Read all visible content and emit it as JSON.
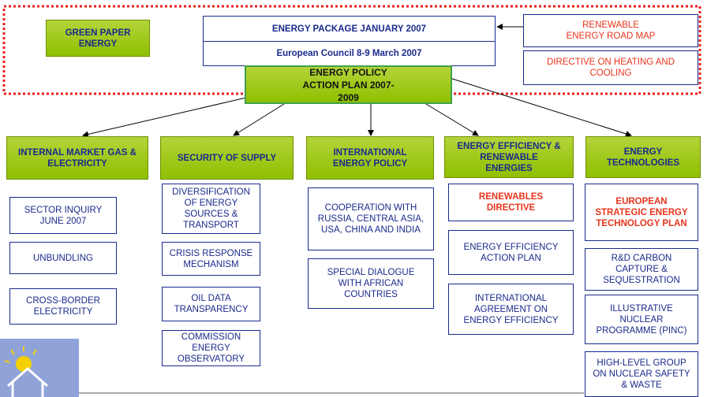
{
  "top": {
    "green_paper": "GREEN PAPER ENERGY",
    "package": "ENERGY PACKAGE JANUARY 2007",
    "council": "European Council 8-9 March 2007",
    "action_plan": "ENERGY POLICY ACTION PLAN 2007-2009",
    "road_map": "RENEWABLE ENERGY ROAD MAP",
    "heating": "DIRECTIVE ON HEATING AND COOLING"
  },
  "columns": [
    {
      "header": "INTERNAL MARKET GAS & ELECTRICITY",
      "items": [
        "SECTOR INQUIRY JUNE 2007",
        "UNBUNDLING",
        "CROSS-BORDER ELECTRICITY"
      ]
    },
    {
      "header": "SECURITY OF SUPPLY",
      "items": [
        "DIVERSIFICATION OF ENERGY SOURCES & TRANSPORT",
        "CRISIS RESPONSE MECHANISM",
        "OIL DATA TRANSPARENCY",
        "COMMISSION ENERGY OBSERVATORY"
      ]
    },
    {
      "header": "INTERNATIONAL ENERGY POLICY",
      "items": [
        "COOPERATION WITH RUSSIA, CENTRAL ASIA, USA, CHINA AND INDIA",
        "SPECIAL DIALOGUE WITH AFRICAN COUNTRIES"
      ]
    },
    {
      "header": "ENERGY EFFICIENCY & RENEWABLE ENERGIES",
      "items": [
        "RENEWABLES DIRECTIVE",
        "ENERGY EFFICIENCY ACTION PLAN",
        "INTERNATIONAL AGREEMENT ON ENERGY EFFICIENCY"
      ]
    },
    {
      "header": "ENERGY TECHNOLOGIES",
      "items": [
        "EUROPEAN STRATEGIC ENERGY TECHNOLOGY PLAN",
        "R&D CARBON CAPTURE & SEQUESTRATION",
        "ILLUSTRATIVE NUCLEAR PROGRAMME (PINC)",
        "HIGH-LEVEL GROUP ON NUCLEAR SAFETY & WASTE"
      ]
    }
  ]
}
